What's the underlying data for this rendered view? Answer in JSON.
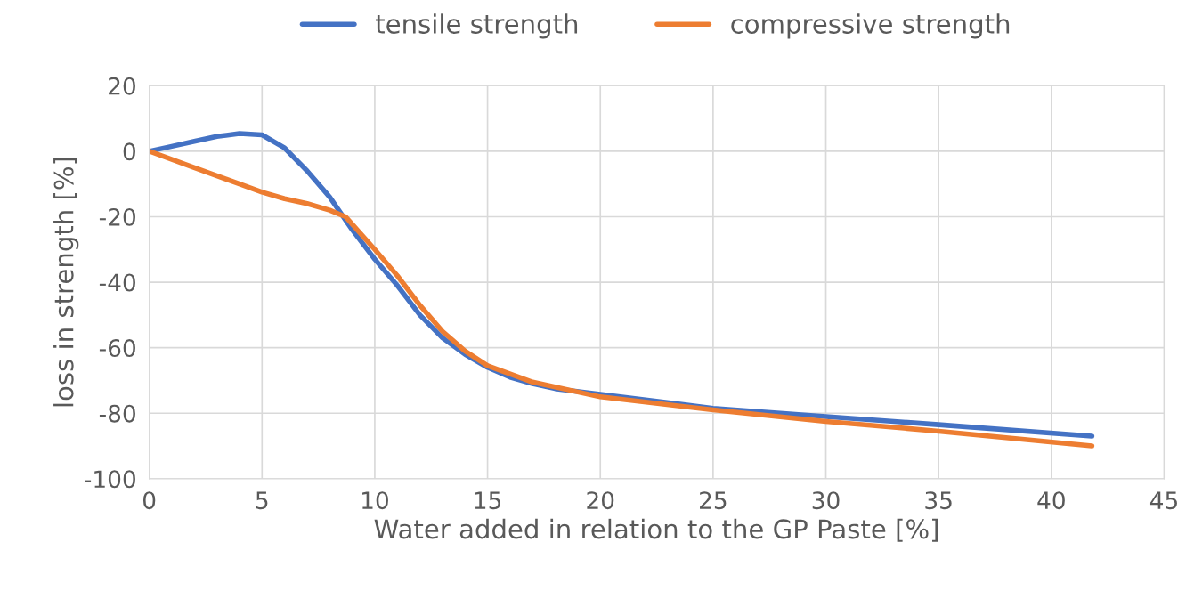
{
  "chart_data": {
    "type": "line",
    "xlabel": "Water added in relation to the GP Paste [%]",
    "ylabel": "loss in strength [%]",
    "series": [
      {
        "name": "tensile strength",
        "color": "#4472c4",
        "x": [
          0,
          1,
          2,
          3,
          4,
          5,
          6,
          7,
          8,
          9,
          10,
          11,
          12,
          13,
          14,
          15,
          16,
          17,
          18,
          25,
          30,
          35,
          41.8
        ],
        "values": [
          0,
          1.5,
          3,
          4.5,
          5.4,
          5,
          1,
          -6,
          -14,
          -24,
          -33,
          -41,
          -50,
          -57,
          -62,
          -66,
          -69,
          -71,
          -72.5,
          -78.5,
          -81,
          -83.5,
          -87
        ]
      },
      {
        "name": "compressive strength",
        "color": "#ed7d31",
        "x": [
          0,
          2,
          4,
          5,
          6,
          7,
          8,
          8.7,
          10,
          11,
          12,
          13,
          14,
          15,
          17,
          20,
          25,
          30,
          35,
          41.8
        ],
        "values": [
          0,
          -5,
          -10,
          -12.5,
          -14.5,
          -16,
          -18,
          -20,
          -30,
          -38,
          -47,
          -55,
          -61,
          -65.5,
          -70.5,
          -75,
          -79,
          -82.5,
          -85.5,
          -90
        ]
      }
    ],
    "xlim": [
      0,
      45
    ],
    "xticks": [
      0,
      5,
      10,
      15,
      20,
      25,
      30,
      35,
      40,
      45
    ],
    "ylim": [
      -100,
      20
    ],
    "yticks": [
      -100,
      -80,
      -60,
      -40,
      -20,
      0,
      20
    ],
    "grid": true,
    "legend": "top"
  }
}
